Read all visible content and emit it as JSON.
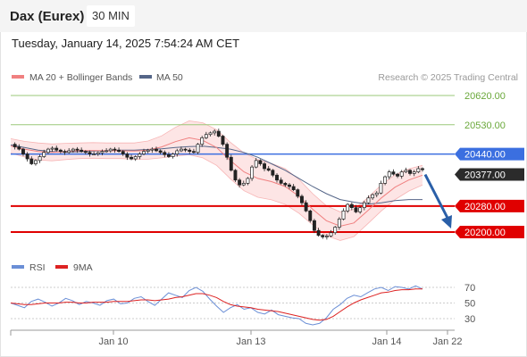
{
  "header": {
    "instrument": "Dax (Eurex)",
    "timeframe": "30 MIN",
    "datetime": "Tuesday, January 14, 2025 7:54:24 AM CET"
  },
  "legend": {
    "ma20_label": "MA 20 + Bollinger Bands",
    "ma50_label": "MA 50",
    "credit": "Research © 2025 Trading Central"
  },
  "rsi_legend": {
    "rsi_label": "RSI",
    "ma_label": "9MA"
  },
  "colors": {
    "candle": "#222222",
    "ma20": "#f08080",
    "bollinger_fill": "#fde2e2",
    "ma50": "#556688",
    "level_green": "#9bc97a",
    "level_blue": "#3b6fe0",
    "level_red": "#e00000",
    "current_price": "#2b2b2b",
    "forecast_arrow": "#2a5fa8",
    "rsi": "#6b8fd6",
    "rsi_ma": "#dd2222"
  },
  "chart_data": {
    "type": "candlestick",
    "x_ticks": [
      "Jan 10",
      "Jan 13",
      "Jan 14",
      "Jan 22"
    ],
    "ylim": [
      20150,
      20680
    ],
    "levels": [
      {
        "value": 20620.0,
        "label": "20620.00",
        "style": "green-text"
      },
      {
        "value": 20530.0,
        "label": "20530.00",
        "style": "green-text"
      },
      {
        "value": 20440.0,
        "label": "20440.00",
        "style": "blue-tag"
      },
      {
        "value": 20377.0,
        "label": "20377.00",
        "style": "dark-tag"
      },
      {
        "value": 20280.0,
        "label": "20280.00",
        "style": "red-tag"
      },
      {
        "value": 20200.0,
        "label": "20200.00",
        "style": "red-tag"
      }
    ],
    "forecast_arrow": {
      "from": 20377,
      "to": 20200
    },
    "price_path": [
      20470,
      20462,
      20455,
      20440,
      20425,
      20410,
      20420,
      20432,
      20445,
      20455,
      20458,
      20452,
      20448,
      20445,
      20450,
      20455,
      20452,
      20448,
      20445,
      20440,
      20440,
      20444,
      20448,
      20450,
      20455,
      20452,
      20448,
      20440,
      20430,
      20425,
      20432,
      20440,
      20448,
      20452,
      20455,
      20450,
      20445,
      20438,
      20432,
      20440,
      20450,
      20455,
      20452,
      20448,
      20445,
      20470,
      20490,
      20500,
      20505,
      20510,
      20495,
      20470,
      20430,
      20390,
      20360,
      20345,
      20350,
      20365,
      20400,
      20420,
      20410,
      20395,
      20390,
      20375,
      20360,
      20350,
      20345,
      20340,
      20330,
      20310,
      20290,
      20265,
      20235,
      20205,
      20190,
      20185,
      20188,
      20198,
      20215,
      20240,
      20265,
      20285,
      20275,
      20262,
      20275,
      20290,
      20305,
      20315,
      20320,
      20350,
      20370,
      20385,
      20378,
      20372,
      20385,
      20390,
      20380,
      20385,
      20395,
      20392
    ],
    "price_start_x": 12,
    "price_end_x": 473,
    "ma50_path": [
      20468,
      20460,
      20452,
      20448,
      20446,
      20447,
      20449,
      20450,
      20452,
      20452,
      20454,
      20456,
      20460,
      20463,
      20464,
      20460,
      20455,
      20445,
      20430,
      20410,
      20390,
      20365,
      20340,
      20318,
      20300,
      20292,
      20286,
      20290,
      20297,
      20300,
      20300
    ],
    "ma20_path": [
      20465,
      20455,
      20448,
      20445,
      20448,
      20450,
      20451,
      20450,
      20450,
      20449,
      20452,
      20462,
      20478,
      20490,
      20482,
      20460,
      20420,
      20385,
      20365,
      20355,
      20340,
      20310,
      20270,
      20235,
      20218,
      20228,
      20265,
      20305,
      20338,
      20360,
      20375
    ],
    "ma_start_x": 12,
    "ma_end_x": 473,
    "rsi": {
      "yticks": [
        70,
        50,
        30
      ],
      "ylim": [
        20,
        80
      ],
      "rsi_path": [
        50,
        47,
        44,
        52,
        55,
        51,
        46,
        50,
        56,
        53,
        48,
        52,
        50,
        47,
        53,
        55,
        49,
        50,
        56,
        58,
        52,
        47,
        55,
        63,
        60,
        57,
        66,
        70,
        65,
        55,
        46,
        38,
        44,
        48,
        42,
        44,
        38,
        36,
        41,
        35,
        33,
        31,
        30,
        24,
        22,
        24,
        31,
        42,
        48,
        56,
        60,
        58,
        63,
        68,
        70,
        66,
        71,
        70,
        68,
        72,
        68
      ],
      "ma_path": [
        50,
        49,
        48,
        48,
        49,
        50,
        50,
        50,
        51,
        51,
        50,
        50,
        51,
        51,
        51,
        52,
        52,
        52,
        53,
        54,
        54,
        53,
        54,
        55,
        57,
        58,
        60,
        62,
        62,
        60,
        57,
        52,
        48,
        46,
        45,
        44,
        42,
        41,
        40,
        39,
        37,
        35,
        33,
        31,
        29,
        28,
        29,
        33,
        39,
        45,
        50,
        54,
        57,
        60,
        63,
        64,
        66,
        67,
        67,
        68,
        68
      ]
    }
  }
}
